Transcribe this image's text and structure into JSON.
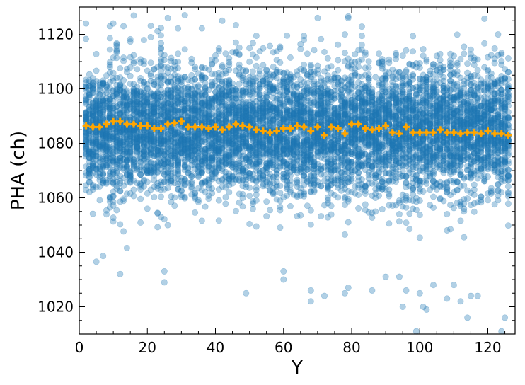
{
  "chart_data": {
    "type": "scatter",
    "title": "",
    "xlabel": "Y",
    "ylabel": "PHA (ch)",
    "xlim": [
      0,
      128
    ],
    "ylim": [
      1010,
      1130
    ],
    "x_ticks": [
      0,
      20,
      40,
      60,
      80,
      100,
      120
    ],
    "y_ticks": [
      1020,
      1040,
      1060,
      1080,
      1100,
      1120
    ],
    "x_minor_step": 5,
    "y_minor_step": 5,
    "grid": false,
    "legend": "none",
    "series": [
      {
        "kind": "scatter-cloud",
        "color": "#1f77b4",
        "opacity": 0.35,
        "x_range": [
          2,
          126
        ],
        "center": 1085,
        "core_spread": 12,
        "points_per_x": 60,
        "sample_outliers": [
          {
            "x": 2,
            "y": 1124
          },
          {
            "x": 9,
            "y": 1123
          },
          {
            "x": 10,
            "y": 1124
          },
          {
            "x": 13,
            "y": 1123
          },
          {
            "x": 26,
            "y": 1126
          },
          {
            "x": 31,
            "y": 1127
          },
          {
            "x": 70,
            "y": 1126
          },
          {
            "x": 79,
            "y": 1126
          },
          {
            "x": 42,
            "y": 1125
          },
          {
            "x": 12,
            "y": 1032
          },
          {
            "x": 25,
            "y": 1033
          },
          {
            "x": 25,
            "y": 1029
          },
          {
            "x": 49,
            "y": 1025
          },
          {
            "x": 60,
            "y": 1033
          },
          {
            "x": 60,
            "y": 1030
          },
          {
            "x": 68,
            "y": 1026
          },
          {
            "x": 68,
            "y": 1022
          },
          {
            "x": 72,
            "y": 1024
          },
          {
            "x": 78,
            "y": 1025
          },
          {
            "x": 79,
            "y": 1027
          },
          {
            "x": 86,
            "y": 1026
          },
          {
            "x": 90,
            "y": 1031
          },
          {
            "x": 94,
            "y": 1031
          },
          {
            "x": 95,
            "y": 1020
          },
          {
            "x": 96,
            "y": 1026
          },
          {
            "x": 99,
            "y": 1011
          },
          {
            "x": 100,
            "y": 1025
          },
          {
            "x": 101,
            "y": 1020
          },
          {
            "x": 102,
            "y": 1019
          },
          {
            "x": 104,
            "y": 1028
          },
          {
            "x": 108,
            "y": 1023
          },
          {
            "x": 110,
            "y": 1028
          },
          {
            "x": 112,
            "y": 1022
          },
          {
            "x": 114,
            "y": 1016
          },
          {
            "x": 115,
            "y": 1024
          },
          {
            "x": 117,
            "y": 1024
          },
          {
            "x": 124,
            "y": 1011
          },
          {
            "x": 125,
            "y": 1016
          }
        ]
      },
      {
        "kind": "mean-markers",
        "color": "#ffa500",
        "x": [
          2,
          4,
          6,
          8,
          10,
          12,
          14,
          16,
          18,
          20,
          22,
          24,
          26,
          28,
          30,
          32,
          34,
          36,
          38,
          40,
          42,
          44,
          46,
          48,
          50,
          52,
          54,
          56,
          58,
          60,
          62,
          64,
          66,
          68,
          70,
          72,
          74,
          76,
          78,
          80,
          82,
          84,
          86,
          88,
          90,
          92,
          94,
          96,
          98,
          100,
          102,
          104,
          106,
          108,
          110,
          112,
          114,
          116,
          118,
          120,
          122,
          124,
          126
        ],
        "y": [
          1086.5,
          1086,
          1086,
          1087,
          1088,
          1088,
          1087,
          1087,
          1086.5,
          1086.5,
          1085.5,
          1085.5,
          1087,
          1087.5,
          1088,
          1086,
          1086,
          1086,
          1085.5,
          1086,
          1085,
          1086,
          1087,
          1086.5,
          1086,
          1085,
          1084.5,
          1084,
          1084.5,
          1085.5,
          1085.5,
          1086.5,
          1086,
          1084.5,
          1086,
          1083,
          1086,
          1085.5,
          1083.5,
          1087,
          1087,
          1085.5,
          1085,
          1085.5,
          1086.5,
          1084,
          1083.5,
          1086,
          1084,
          1084,
          1084,
          1084,
          1085,
          1084,
          1084,
          1083.5,
          1084,
          1084,
          1083.5,
          1084.5,
          1083.5,
          1083.5,
          1083
        ]
      }
    ]
  }
}
